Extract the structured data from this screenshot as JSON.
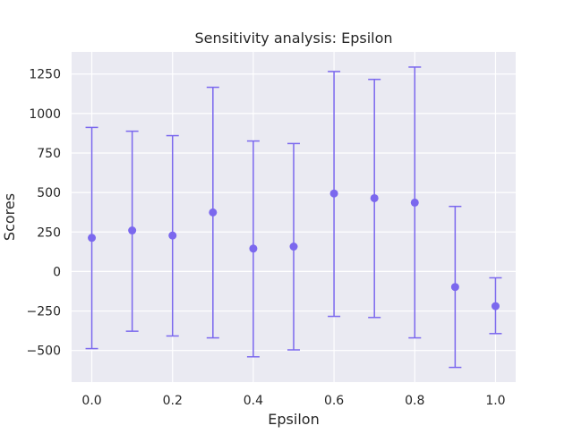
{
  "chart_data": {
    "type": "scatter",
    "title": "Sensitivity analysis: Epsilon",
    "xlabel": "Epsilon",
    "ylabel": "Scores",
    "xlim": [
      -0.05,
      1.05
    ],
    "ylim": [
      -700,
      1390
    ],
    "x_ticks": [
      0.0,
      0.2,
      0.4,
      0.6,
      0.8,
      1.0
    ],
    "x_tick_labels": [
      "0.0",
      "0.2",
      "0.4",
      "0.6",
      "0.8",
      "1.0"
    ],
    "y_ticks": [
      -500,
      -250,
      0,
      250,
      500,
      750,
      1000,
      1250
    ],
    "y_tick_labels": [
      "−500",
      "−250",
      "0",
      "250",
      "500",
      "750",
      "1000",
      "1250"
    ],
    "grid": true,
    "color": "#7b68ee",
    "series": [
      {
        "x": [
          0.0,
          0.1,
          0.2,
          0.3,
          0.4,
          0.5,
          0.6,
          0.7,
          0.8,
          0.9,
          1.0
        ],
        "y": [
          213,
          260,
          228,
          374,
          145,
          158,
          494,
          464,
          436,
          -98,
          -219
        ],
        "yerr_low": [
          -488,
          -378,
          -408,
          -420,
          -540,
          -496,
          -284,
          -291,
          -420,
          -607,
          -393
        ],
        "yerr_high": [
          912,
          888,
          860,
          1166,
          826,
          810,
          1266,
          1216,
          1294,
          412,
          -40
        ]
      }
    ]
  }
}
